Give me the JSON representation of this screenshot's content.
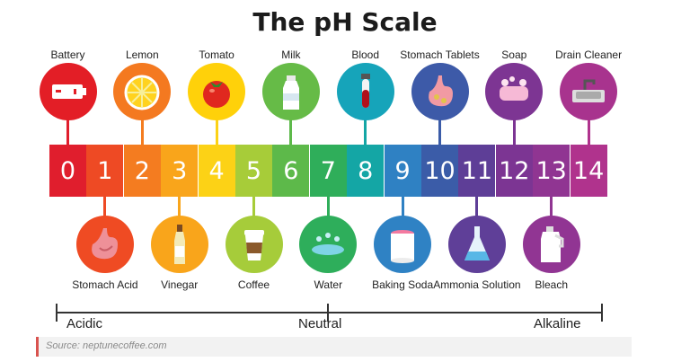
{
  "title": "The pH Scale",
  "scale_values": [
    "0",
    "1",
    "2",
    "3",
    "4",
    "5",
    "6",
    "7",
    "8",
    "9",
    "10",
    "11",
    "12",
    "13",
    "14"
  ],
  "scale_colors": [
    "#e01e2d",
    "#ee4a24",
    "#f47c20",
    "#f9a51b",
    "#fcd216",
    "#a7cc39",
    "#5db94a",
    "#2fae5a",
    "#14a6a5",
    "#2f81c3",
    "#3b5ca8",
    "#5e3e97",
    "#7c3593",
    "#903592",
    "#b0338d"
  ],
  "top_items": [
    {
      "label": "Battery",
      "ph": "0",
      "circle_color": "#e31e26",
      "icon": "battery-icon"
    },
    {
      "label": "Lemon",
      "ph": "2",
      "circle_color": "#f47920",
      "icon": "lemon-icon"
    },
    {
      "label": "Tomato",
      "ph": "4",
      "circle_color": "#ffd10a",
      "icon": "tomato-icon"
    },
    {
      "label": "Milk",
      "ph": "6",
      "circle_color": "#66bb47",
      "icon": "milk-bottle-icon"
    },
    {
      "label": "Blood",
      "ph": "8",
      "circle_color": "#16a4ba",
      "icon": "blood-tube-icon"
    },
    {
      "label": "Stomach Tablets",
      "ph": "10",
      "circle_color": "#3d5aa8",
      "icon": "stomach-tablets-icon"
    },
    {
      "label": "Soap",
      "ph": "12",
      "circle_color": "#7d3593",
      "icon": "soap-icon"
    },
    {
      "label": "Drain Cleaner",
      "ph": "14",
      "circle_color": "#a8338e",
      "icon": "sink-icon"
    }
  ],
  "bottom_items": [
    {
      "label": "Stomach Acid",
      "ph": "1",
      "circle_color": "#ef4b23",
      "icon": "stomach-icon"
    },
    {
      "label": "Vinegar",
      "ph": "3",
      "circle_color": "#f9a51b",
      "icon": "vinegar-bottle-icon"
    },
    {
      "label": "Coffee",
      "ph": "5",
      "circle_color": "#a6cc3a",
      "icon": "coffee-cup-icon"
    },
    {
      "label": "Water",
      "ph": "7",
      "circle_color": "#2eae5b",
      "icon": "water-splash-icon"
    },
    {
      "label": "Baking Soda",
      "ph": "9",
      "circle_color": "#2f82c4",
      "icon": "baking-soda-icon"
    },
    {
      "label": "Ammonia Solution",
      "ph": "11",
      "circle_color": "#5f3f98",
      "icon": "flask-icon"
    },
    {
      "label": "Bleach",
      "ph": "13",
      "circle_color": "#913593",
      "icon": "bleach-bottle-icon"
    }
  ],
  "axis": {
    "left": "Acidic",
    "middle": "Neutral",
    "right": "Alkaline"
  },
  "source": "Source: neptunecoffee.com"
}
